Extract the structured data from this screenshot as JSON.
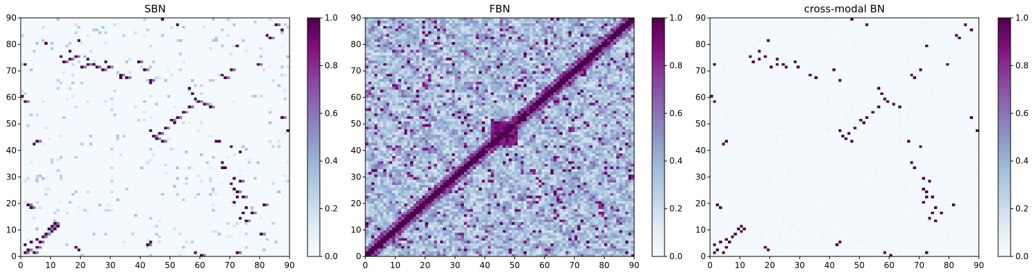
{
  "figure": {
    "colorbar_ticks": [
      "0.0",
      "0.2",
      "0.4",
      "0.6",
      "0.8",
      "1.0"
    ],
    "axis_ticks": [
      "0",
      "10",
      "20",
      "30",
      "40",
      "50",
      "60",
      "70",
      "80",
      "90"
    ]
  },
  "chart_data": [
    {
      "type": "heatmap",
      "title": "SBN",
      "xlim": [
        0,
        90
      ],
      "ylim": [
        0,
        90
      ],
      "value_range": [
        0,
        1
      ],
      "colormap": "BuPu",
      "grid": false,
      "note_cells": "90x90 adjacency matrix; strongest links (value ~1.0) listed as [x, y]; remaining cells mostly near 0 with faint light-blue entries",
      "strong_cells": [
        [
          1,
          1
        ],
        [
          2,
          2
        ],
        [
          4,
          1
        ],
        [
          5,
          3
        ],
        [
          6,
          5
        ],
        [
          7,
          7
        ],
        [
          8,
          8
        ],
        [
          9,
          10
        ],
        [
          10,
          11
        ],
        [
          11,
          12
        ],
        [
          3,
          18
        ],
        [
          2,
          19
        ],
        [
          5,
          43
        ],
        [
          14,
          73
        ],
        [
          16,
          74
        ],
        [
          18,
          75
        ],
        [
          20,
          71
        ],
        [
          22,
          72
        ],
        [
          25,
          71
        ],
        [
          27,
          70
        ],
        [
          29,
          71
        ],
        [
          33,
          68
        ],
        [
          35,
          67
        ],
        [
          39,
          73
        ],
        [
          41,
          70
        ],
        [
          43,
          66
        ],
        [
          44,
          45
        ],
        [
          45,
          44
        ],
        [
          46,
          46
        ],
        [
          47,
          43
        ],
        [
          48,
          48
        ],
        [
          50,
          51
        ],
        [
          52,
          52
        ],
        [
          54,
          54
        ],
        [
          56,
          56
        ],
        [
          59,
          58
        ],
        [
          61,
          57
        ],
        [
          63,
          56
        ],
        [
          65,
          43
        ],
        [
          67,
          33
        ],
        [
          68,
          67
        ],
        [
          70,
          70
        ],
        [
          72,
          24
        ],
        [
          73,
          28
        ],
        [
          74,
          22
        ],
        [
          75,
          13
        ],
        [
          77,
          16
        ],
        [
          79,
          72
        ],
        [
          80,
          8
        ],
        [
          81,
          19
        ],
        [
          83,
          82
        ],
        [
          85,
          87
        ],
        [
          87,
          52
        ],
        [
          89,
          47
        ],
        [
          60,
          0
        ],
        [
          72,
          1
        ],
        [
          42,
          4
        ],
        [
          1,
          58
        ]
      ]
    },
    {
      "type": "heatmap",
      "title": "FBN",
      "xlim": [
        0,
        90
      ],
      "ylim": [
        0,
        90
      ],
      "value_range": [
        0,
        1
      ],
      "colormap": "BuPu",
      "grid": false,
      "note_cells": "90x90 dense functional connectivity matrix; strong diagonal band from lower-left to upper-right with a dense block around x,y 42-50; background mostly light-blue values 0.2-0.5",
      "strong_block": [
        42,
        50
      ],
      "diagonal_strength": 1.0
    },
    {
      "type": "heatmap",
      "title": "cross-modal BN",
      "xlim": [
        0,
        90
      ],
      "ylim": [
        0,
        90
      ],
      "value_range": [
        0,
        1
      ],
      "colormap": "BuPu",
      "grid": false,
      "note_cells": "90x90 sparse binary matrix; only strongest links (value 1.0) shown as [x, y], rest near 0",
      "strong_cells": [
        [
          1,
          1
        ],
        [
          2,
          2
        ],
        [
          4,
          1
        ],
        [
          5,
          3
        ],
        [
          6,
          5
        ],
        [
          7,
          7
        ],
        [
          8,
          8
        ],
        [
          9,
          10
        ],
        [
          10,
          11
        ],
        [
          3,
          18
        ],
        [
          2,
          19
        ],
        [
          5,
          43
        ],
        [
          14,
          73
        ],
        [
          16,
          74
        ],
        [
          18,
          75
        ],
        [
          20,
          71
        ],
        [
          22,
          72
        ],
        [
          25,
          71
        ],
        [
          29,
          71
        ],
        [
          33,
          68
        ],
        [
          35,
          67
        ],
        [
          41,
          70
        ],
        [
          43,
          66
        ],
        [
          44,
          45
        ],
        [
          45,
          44
        ],
        [
          46,
          46
        ],
        [
          47,
          43
        ],
        [
          48,
          48
        ],
        [
          50,
          51
        ],
        [
          52,
          52
        ],
        [
          54,
          54
        ],
        [
          56,
          56
        ],
        [
          59,
          58
        ],
        [
          61,
          57
        ],
        [
          63,
          56
        ],
        [
          68,
          67
        ],
        [
          70,
          70
        ],
        [
          72,
          24
        ],
        [
          73,
          28
        ],
        [
          74,
          22
        ],
        [
          75,
          13
        ],
        [
          77,
          16
        ],
        [
          79,
          72
        ],
        [
          81,
          19
        ],
        [
          83,
          82
        ],
        [
          85,
          87
        ],
        [
          87,
          52
        ],
        [
          89,
          47
        ],
        [
          60,
          0
        ],
        [
          72,
          1
        ],
        [
          1,
          58
        ],
        [
          42,
          4
        ]
      ]
    }
  ]
}
